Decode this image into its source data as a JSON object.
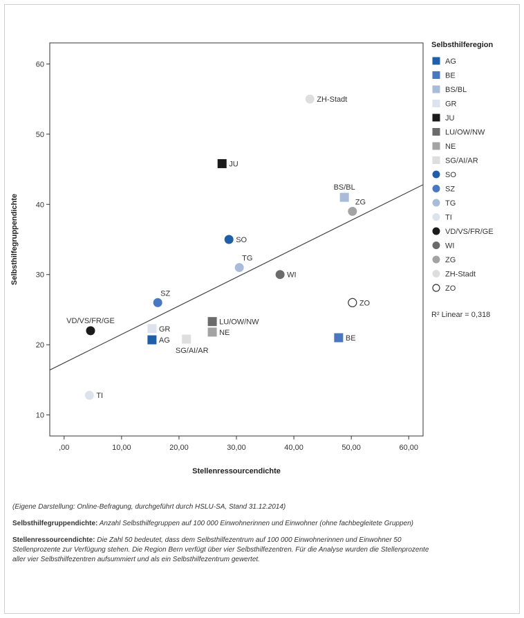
{
  "chart_data": {
    "type": "scatter",
    "xlabel": "Stellenressourcendichte",
    "ylabel": "Selbsthilfegruppendichte",
    "xlim": [
      -2.5,
      62.5
    ],
    "ylim": [
      7,
      63
    ],
    "x_ticks": [
      0,
      10,
      20,
      30,
      40,
      50,
      60
    ],
    "x_tick_labels": [
      ",00",
      "10,00",
      "20,00",
      "30,00",
      "40,00",
      "50,00",
      "60,00"
    ],
    "y_ticks": [
      10,
      20,
      30,
      40,
      50,
      60
    ],
    "y_tick_labels": [
      "10",
      "20",
      "30",
      "40",
      "50",
      "60"
    ],
    "grid": false,
    "legend": {
      "title": "Selbsthilferegion",
      "placement": "right",
      "fit_label": "R² Linear = 0,318"
    },
    "fit_line": {
      "x": [
        -2.5,
        62.5
      ],
      "y": [
        16.4,
        42.8
      ]
    },
    "points": [
      {
        "name": "AG",
        "x": 15.3,
        "y": 20.7,
        "marker": "square",
        "color": "#1f5fa8"
      },
      {
        "name": "BE",
        "x": 47.8,
        "y": 21.0,
        "marker": "square",
        "color": "#4a78c0"
      },
      {
        "name": "BS/BL",
        "x": 48.8,
        "y": 41.0,
        "marker": "square",
        "color": "#a8bcd9"
      },
      {
        "name": "GR",
        "x": 15.3,
        "y": 22.3,
        "marker": "square",
        "color": "#dde3ec"
      },
      {
        "name": "JU",
        "x": 27.5,
        "y": 45.8,
        "marker": "square",
        "color": "#1b1b1b"
      },
      {
        "name": "LU/OW/NW",
        "x": 25.8,
        "y": 23.3,
        "marker": "square",
        "color": "#6b6b6b"
      },
      {
        "name": "NE",
        "x": 25.8,
        "y": 21.8,
        "marker": "square",
        "color": "#a3a3a3"
      },
      {
        "name": "SG/AI/AR",
        "x": 21.3,
        "y": 20.8,
        "marker": "square",
        "color": "#dedede"
      },
      {
        "name": "SO",
        "x": 28.7,
        "y": 35.0,
        "marker": "circle",
        "color": "#1f5fa8"
      },
      {
        "name": "SZ",
        "x": 16.3,
        "y": 26.0,
        "marker": "circle",
        "color": "#4a78c0"
      },
      {
        "name": "TG",
        "x": 30.5,
        "y": 31.0,
        "marker": "circle",
        "color": "#a8bcd9"
      },
      {
        "name": "TI",
        "x": 4.4,
        "y": 12.8,
        "marker": "circle",
        "color": "#dde3ec"
      },
      {
        "name": "VD/VS/FR/GE",
        "x": 4.6,
        "y": 22.0,
        "marker": "circle",
        "color": "#1b1b1b"
      },
      {
        "name": "WI",
        "x": 37.6,
        "y": 30.0,
        "marker": "circle",
        "color": "#6b6b6b"
      },
      {
        "name": "ZG",
        "x": 50.2,
        "y": 39.0,
        "marker": "circle",
        "color": "#a3a3a3"
      },
      {
        "name": "ZH-Stadt",
        "x": 42.8,
        "y": 55.0,
        "marker": "circle",
        "color": "#dedede"
      },
      {
        "name": "ZO",
        "x": 50.2,
        "y": 26.0,
        "marker": "circle-open",
        "color": "#ffffff"
      }
    ],
    "point_labels": [
      {
        "text": "ZH-Stadt",
        "anchor": "ZH-Stadt",
        "side": "right"
      },
      {
        "text": "JU",
        "anchor": "JU",
        "side": "right"
      },
      {
        "text": "BS/BL",
        "anchor": "BS/BL",
        "side": "above"
      },
      {
        "text": "ZG",
        "anchor": "ZG",
        "side": "above-right"
      },
      {
        "text": "SO",
        "anchor": "SO",
        "side": "right"
      },
      {
        "text": "TG",
        "anchor": "TG",
        "side": "above-right"
      },
      {
        "text": "WI",
        "anchor": "WI",
        "side": "right"
      },
      {
        "text": "ZO",
        "anchor": "ZO",
        "side": "right"
      },
      {
        "text": "SZ",
        "anchor": "SZ",
        "side": "above-right"
      },
      {
        "text": "VD/VS/FR/GE",
        "anchor": "VD/VS/FR/GE",
        "side": "above"
      },
      {
        "text": "GR",
        "anchor": "GR",
        "side": "right"
      },
      {
        "text": "AG",
        "anchor": "AG",
        "side": "right"
      },
      {
        "text": "LU/OW/NW",
        "anchor": "LU/OW/NW",
        "side": "right"
      },
      {
        "text": "NE",
        "anchor": "NE",
        "side": "right"
      },
      {
        "text": "SG/AI/AR",
        "anchor": "SG/AI/AR",
        "side": "below"
      },
      {
        "text": "BE",
        "anchor": "BE",
        "side": "right"
      },
      {
        "text": "TI",
        "anchor": "TI",
        "side": "right"
      }
    ]
  },
  "notes": {
    "source": "(Eigene Darstellung: Online-Befragung, durchgeführt durch HSLU-SA, Stand 31.12.2014)",
    "term1": "Selbsthilfegruppendichte:",
    "text1": " Anzahl Selbsthilfegruppen auf 100 000 Einwohnerinnen und Einwohner (ohne fachbegleitete Gruppen)",
    "term2": "Stellenressourcendichte:",
    "text2": " Die Zahl 50 bedeutet, dass dem Selbsthilfezentrum auf 100 000 Einwohnerinnen und Einwohner 50 Stellenprozente zur Verfügung stehen. Die Region Bern verfügt über vier Selbsthilfezentren. Für die Analyse wurden die Stellenprozente aller vier Selbsthilfezentren aufsummiert und als ein Selbsthilfezentrum gewertet."
  }
}
